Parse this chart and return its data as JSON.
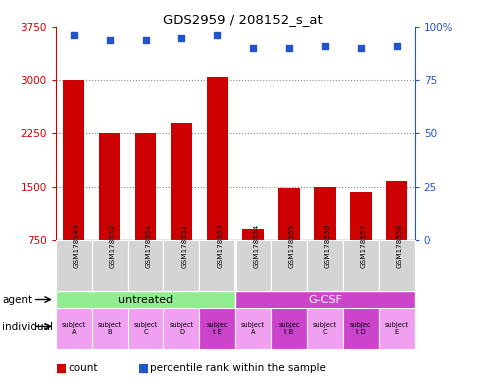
{
  "title": "GDS2959 / 208152_s_at",
  "samples": [
    "GSM178549",
    "GSM178550",
    "GSM178551",
    "GSM178552",
    "GSM178553",
    "GSM178554",
    "GSM178555",
    "GSM178556",
    "GSM178557",
    "GSM178558"
  ],
  "counts": [
    3000,
    2250,
    2250,
    2400,
    3050,
    900,
    1480,
    1500,
    1430,
    1580
  ],
  "percentiles": [
    96,
    94,
    94,
    95,
    96,
    90,
    90,
    91,
    90,
    91
  ],
  "ylim_left": [
    750,
    3750
  ],
  "ylim_right": [
    0,
    100
  ],
  "yticks_left": [
    750,
    1500,
    2250,
    3000,
    3750
  ],
  "yticks_right": [
    0,
    25,
    50,
    75,
    100
  ],
  "agent_labels": [
    "untreated",
    "G-CSF"
  ],
  "agent_colors": [
    "#90ee90",
    "#cc44cc"
  ],
  "indiv_labels": [
    "subject\nA",
    "subject\nB",
    "subject\nC",
    "subject\nD",
    "subjec\nt E",
    "subject\nA",
    "subjec\nt B",
    "subject\nC",
    "subjec\nt D",
    "subject\nE"
  ],
  "indiv_colors": [
    "#f0a0f0",
    "#f0a0f0",
    "#f0a0f0",
    "#f0a0f0",
    "#cc44cc",
    "#f0a0f0",
    "#cc44cc",
    "#f0a0f0",
    "#cc44cc",
    "#f0a0f0"
  ],
  "bar_color": "#cc0000",
  "dot_color": "#2255cc",
  "bar_width": 0.6,
  "grid_color": "#888888",
  "bg_color": "#ffffff",
  "tick_color_left": "#cc0000",
  "tick_color_right": "#2255cc",
  "gsm_label_bg": "#d4d4d4"
}
